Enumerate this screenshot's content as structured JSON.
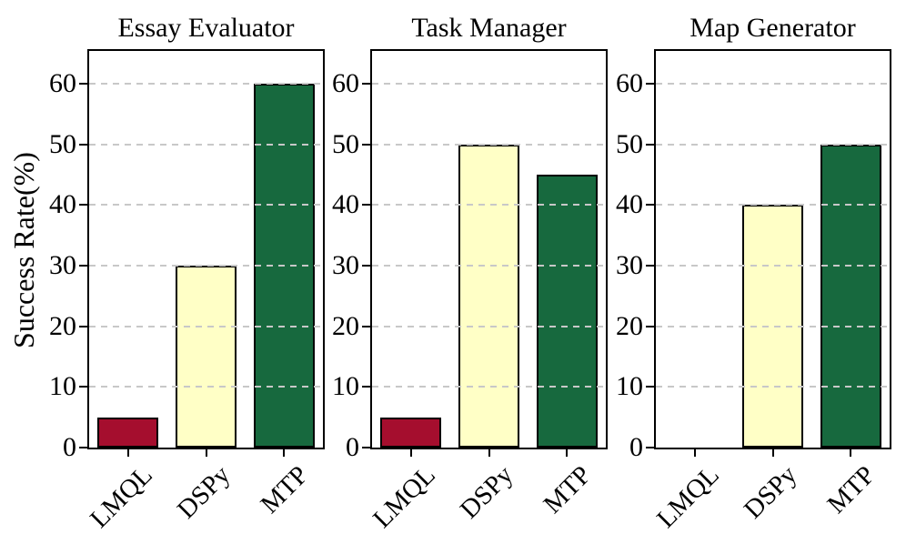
{
  "figure": {
    "ylabel": "Success Rate(%)",
    "colors": {
      "lmql_bar": "#A50E2E",
      "dspy_bar": "#FFFFC6",
      "mtp_bar": "#17693E",
      "bar_edge": "#000000",
      "gridline": "#C8C8C8",
      "spine": "#000000"
    }
  },
  "chart_data": [
    {
      "type": "bar",
      "title": "Essay Evaluator",
      "categories": [
        "LMQL",
        "DSPy",
        "MTP"
      ],
      "values": [
        5,
        30,
        60
      ],
      "bar_colors": [
        "#A50E2E",
        "#FFFFC6",
        "#17693E"
      ],
      "ylabel": "Success Rate(%)",
      "ylim": [
        0,
        65.4
      ],
      "yticks": [
        0,
        10,
        20,
        30,
        40,
        50,
        60
      ],
      "grid": "horizontal-dashed",
      "legend": "none"
    },
    {
      "type": "bar",
      "title": "Task Manager",
      "categories": [
        "LMQL",
        "DSPy",
        "MTP"
      ],
      "values": [
        5,
        50,
        45
      ],
      "bar_colors": [
        "#A50E2E",
        "#FFFFC6",
        "#17693E"
      ],
      "ylabel": "Success Rate(%)",
      "ylim": [
        0,
        65.4
      ],
      "yticks": [
        0,
        10,
        20,
        30,
        40,
        50,
        60
      ],
      "grid": "horizontal-dashed",
      "legend": "none"
    },
    {
      "type": "bar",
      "title": "Map Generator",
      "categories": [
        "LMQL",
        "DSPy",
        "MTP"
      ],
      "values": [
        0,
        40,
        50
      ],
      "bar_colors": [
        "#A50E2E",
        "#FFFFC6",
        "#17693E"
      ],
      "ylabel": "Success Rate(%)",
      "ylim": [
        0,
        65.4
      ],
      "yticks": [
        0,
        10,
        20,
        30,
        40,
        50,
        60
      ],
      "grid": "horizontal-dashed",
      "legend": "none"
    }
  ]
}
